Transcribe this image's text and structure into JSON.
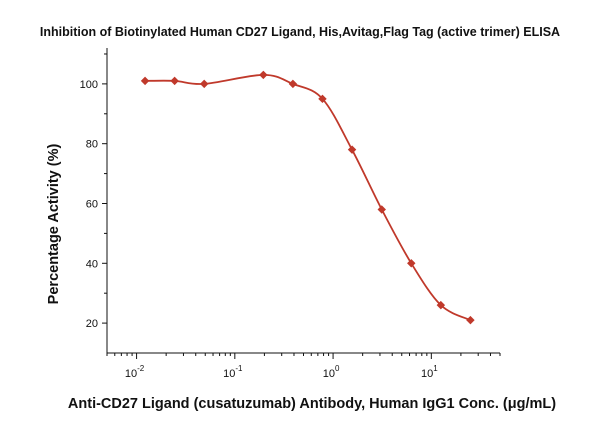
{
  "chart_data": {
    "type": "scatter",
    "title": "Inhibition of Biotinylated Human CD27 Ligand, His,Avitag,Flag Tag (active trimer) ELISA",
    "xlabel": "Anti-CD27 Ligand (cusatuzumab) Antibody, Human IgG1 Conc. (μg/mL)",
    "ylabel": "Percentage Activity (%)",
    "x_scale": "log",
    "xlim": [
      0.005,
      50
    ],
    "ylim": [
      10,
      112
    ],
    "x_ticks": [
      {
        "value": 0.01,
        "base": "10",
        "exp": "-2"
      },
      {
        "value": 0.1,
        "base": "10",
        "exp": "-1"
      },
      {
        "value": 1,
        "base": "10",
        "exp": "0"
      },
      {
        "value": 10,
        "base": "10",
        "exp": "1"
      }
    ],
    "y_ticks": [
      20,
      40,
      60,
      80,
      100
    ],
    "grid": false,
    "legend": "none",
    "series": [
      {
        "color": "#c0392b",
        "marker": "diamond",
        "points": [
          {
            "x": 0.0122,
            "y": 101
          },
          {
            "x": 0.0244,
            "y": 101
          },
          {
            "x": 0.0488,
            "y": 100
          },
          {
            "x": 0.195,
            "y": 103
          },
          {
            "x": 0.39,
            "y": 100
          },
          {
            "x": 0.78,
            "y": 95
          },
          {
            "x": 1.56,
            "y": 78
          },
          {
            "x": 3.13,
            "y": 58
          },
          {
            "x": 6.25,
            "y": 40
          },
          {
            "x": 12.5,
            "y": 26
          },
          {
            "x": 25,
            "y": 21
          }
        ]
      }
    ]
  }
}
